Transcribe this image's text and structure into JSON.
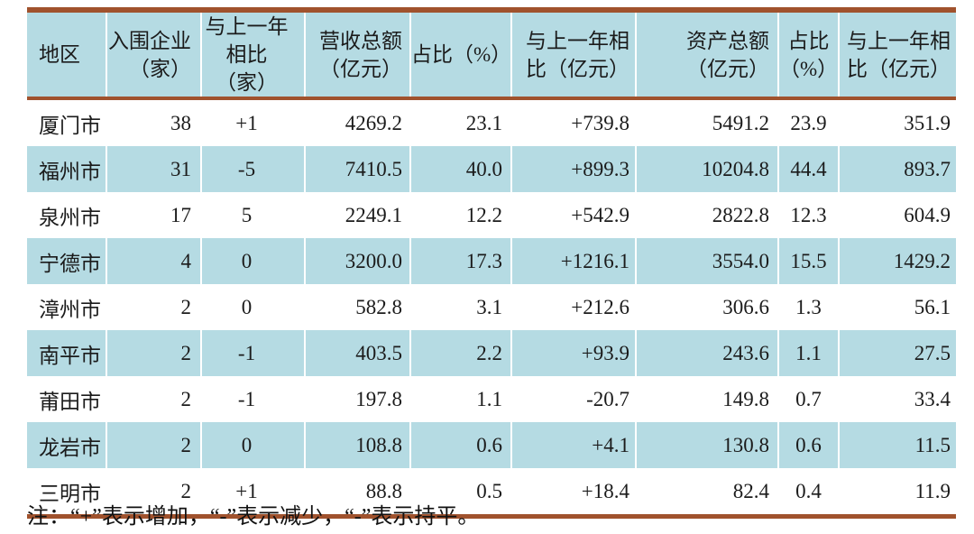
{
  "colors": {
    "border_brown": "#A0522D",
    "row_blue": "#B5DBE3",
    "text": "#1b1b1b"
  },
  "table": {
    "header": [
      {
        "lines": [
          "地区"
        ]
      },
      {
        "lines": [
          "入围企业",
          "（家）"
        ]
      },
      {
        "lines": [
          "与上一年",
          "相比（家）"
        ]
      },
      {
        "lines": [
          "营收总额",
          "（亿元）"
        ]
      },
      {
        "lines": [
          "占比（%）"
        ]
      },
      {
        "lines": [
          "与上一年相",
          "比（亿元）"
        ]
      },
      {
        "lines": [
          "资产总额",
          "（亿元）"
        ]
      },
      {
        "lines": [
          "占比",
          "（%）"
        ]
      },
      {
        "lines": [
          "与上一年相",
          "比（亿元）"
        ]
      }
    ],
    "cell_keys": [
      "region",
      "enterprises",
      "enterprise_change",
      "revenue",
      "revenue_share",
      "revenue_change",
      "assets",
      "assets_share",
      "assets_change"
    ],
    "rows": [
      {
        "region": "厦门市",
        "enterprises": "38",
        "enterprise_change": "+1",
        "revenue": "4269.2",
        "revenue_share": "23.1",
        "revenue_change": "+739.8",
        "assets": "5491.2",
        "assets_share": "23.9",
        "assets_change": "351.9"
      },
      {
        "region": "福州市",
        "enterprises": "31",
        "enterprise_change": "-5",
        "revenue": "7410.5",
        "revenue_share": "40.0",
        "revenue_change": "+899.3",
        "assets": "10204.8",
        "assets_share": "44.4",
        "assets_change": "893.7"
      },
      {
        "region": "泉州市",
        "enterprises": "17",
        "enterprise_change": "5",
        "revenue": "2249.1",
        "revenue_share": "12.2",
        "revenue_change": "+542.9",
        "assets": "2822.8",
        "assets_share": "12.3",
        "assets_change": "604.9"
      },
      {
        "region": "宁德市",
        "enterprises": "4",
        "enterprise_change": "0",
        "revenue": "3200.0",
        "revenue_share": "17.3",
        "revenue_change": "+1216.1",
        "assets": "3554.0",
        "assets_share": "15.5",
        "assets_change": "1429.2"
      },
      {
        "region": "漳州市",
        "enterprises": "2",
        "enterprise_change": "0",
        "revenue": "582.8",
        "revenue_share": "3.1",
        "revenue_change": "+212.6",
        "assets": "306.6",
        "assets_share": "1.3",
        "assets_change": "56.1"
      },
      {
        "region": "南平市",
        "enterprises": "2",
        "enterprise_change": "-1",
        "revenue": "403.5",
        "revenue_share": "2.2",
        "revenue_change": "+93.9",
        "assets": "243.6",
        "assets_share": "1.1",
        "assets_change": "27.5"
      },
      {
        "region": "莆田市",
        "enterprises": "2",
        "enterprise_change": "-1",
        "revenue": "197.8",
        "revenue_share": "1.1",
        "revenue_change": "-20.7",
        "assets": "149.8",
        "assets_share": "0.7",
        "assets_change": "33.4"
      },
      {
        "region": "龙岩市",
        "enterprises": "2",
        "enterprise_change": "0",
        "revenue": "108.8",
        "revenue_share": "0.6",
        "revenue_change": "+4.1",
        "assets": "130.8",
        "assets_share": "0.6",
        "assets_change": "11.5"
      },
      {
        "region": "三明市",
        "enterprises": "2",
        "enterprise_change": "+1",
        "revenue": "88.8",
        "revenue_share": "0.5",
        "revenue_change": "+18.4",
        "assets": "82.4",
        "assets_share": "0.4",
        "assets_change": "11.9"
      }
    ],
    "note": "注：“+”表示增加，“-”表示减少，“-”表示持平。"
  }
}
